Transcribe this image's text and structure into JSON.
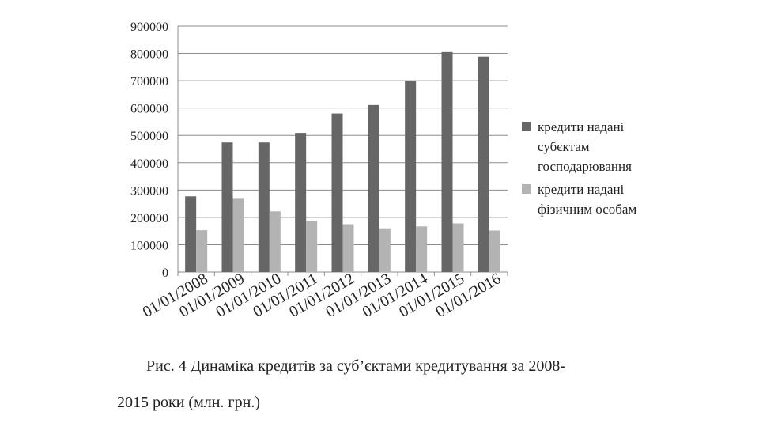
{
  "chart_data": {
    "type": "bar",
    "categories": [
      "01/01/2008",
      "01/01/2009",
      "01/01/2010",
      "01/01/2011",
      "01/01/2012",
      "01/01/2013",
      "01/01/2014",
      "01/01/2015",
      "01/01/2016"
    ],
    "series": [
      {
        "name": "кредити надані субєктам господарювання",
        "color": "#666666",
        "values": [
          277000,
          474000,
          474000,
          509000,
          580000,
          611000,
          699000,
          805000,
          788000
        ]
      },
      {
        "name": "кредити надані фізичним особам",
        "color": "#b3b3b3",
        "values": [
          153000,
          268000,
          222000,
          187000,
          175000,
          160000,
          167000,
          178000,
          152000
        ]
      }
    ],
    "ylim": [
      0,
      900000
    ],
    "yticks": [
      "0",
      "100000",
      "200000",
      "300000",
      "400000",
      "500000",
      "600000",
      "700000",
      "800000",
      "900000"
    ],
    "grid": true,
    "legend_position": "right"
  },
  "legend": {
    "item1_line1": "кредити надані",
    "item1_line2": "субєктам",
    "item1_line3": "господарювання",
    "item2_line1": "кредити надані",
    "item2_line2": "фізичним особам"
  },
  "caption": {
    "line1": "Рис. 4 Динаміка кредитів за суб’єктами кредитування за 2008-",
    "line2": "2015 роки (млн. грн.)"
  }
}
